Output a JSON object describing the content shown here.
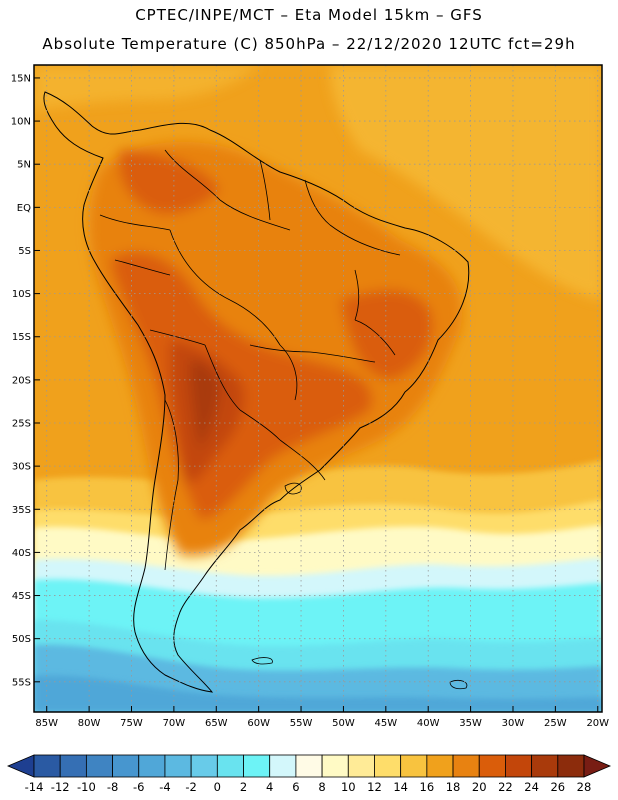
{
  "title": {
    "line1": "CPTEC/INPE/MCT  –    Eta Model 15km  –  GFS",
    "line2": "Absolute Temperature (C) 850hPa – 22/12/2020 12UTC fct=29h"
  },
  "axes": {
    "lat_labels": [
      "15N",
      "10N",
      "5N",
      "EQ",
      "5S",
      "10S",
      "15S",
      "20S",
      "25S",
      "30S",
      "35S",
      "40S",
      "45S",
      "50S",
      "55S"
    ],
    "lat_values": [
      15,
      10,
      5,
      0,
      -5,
      -10,
      -15,
      -20,
      -25,
      -30,
      -35,
      -40,
      -45,
      -50,
      -55
    ],
    "lon_labels": [
      "85W",
      "80W",
      "75W",
      "70W",
      "65W",
      "60W",
      "55W",
      "50W",
      "45W",
      "40W",
      "35W",
      "30W",
      "25W",
      "20W"
    ],
    "lon_values": [
      -85,
      -80,
      -75,
      -70,
      -65,
      -60,
      -55,
      -50,
      -45,
      -40,
      -35,
      -30,
      -25,
      -20
    ]
  },
  "colorbar": {
    "ticks": [
      "-14",
      "-12",
      "-10",
      "-8",
      "-6",
      "-4",
      "-2",
      "0",
      "2",
      "4",
      "6",
      "8",
      "10",
      "12",
      "14",
      "16",
      "18",
      "20",
      "22",
      "24",
      "26",
      "28"
    ],
    "colors": [
      "#1e3f91",
      "#2a5aa3",
      "#356fb4",
      "#3f84c2",
      "#4796cf",
      "#50a7d8",
      "#5cb9e1",
      "#68cbe9",
      "#69e3ef",
      "#6df3f6",
      "#d3f7fb",
      "#fffbe6",
      "#fffac5",
      "#ffeb97",
      "#fedd6a",
      "#f8c33f",
      "#f0a11c",
      "#e88211",
      "#da5d0a",
      "#c3460a",
      "#a93a0b",
      "#8c2c0c",
      "#781d14"
    ]
  },
  "regions": {
    "ocean": "ocean",
    "south-america": "south-america"
  }
}
